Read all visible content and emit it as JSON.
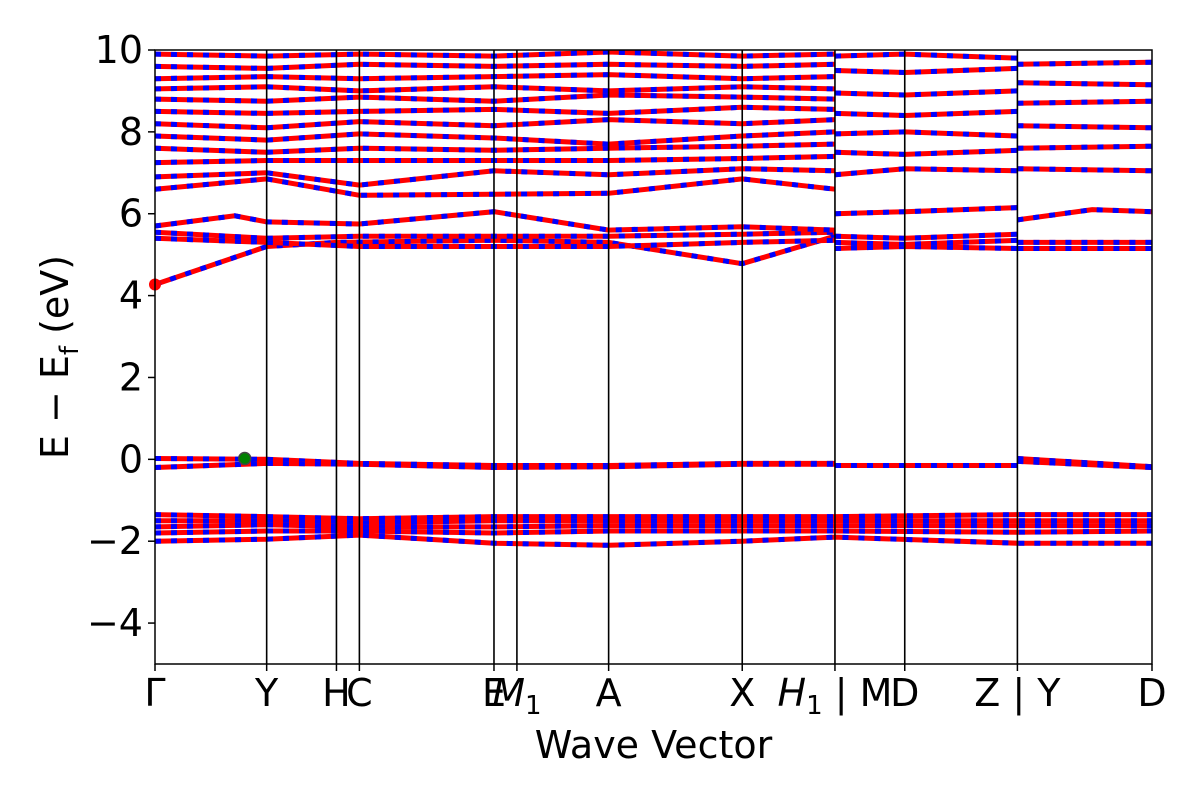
{
  "chart_data": {
    "type": "line",
    "title": "",
    "xlabel": "Wave Vector",
    "ylabel": "E − E",
    "ylabel_subscript": "f",
    "ylabel_unit": "(eV)",
    "ylim": [
      -5,
      10
    ],
    "yticks": [
      -4,
      -2,
      0,
      2,
      4,
      6,
      8,
      10
    ],
    "ytick_labels": [
      "−4",
      "−2",
      "0",
      "2",
      "4",
      "6",
      "8",
      "10"
    ],
    "xlim": [
      0,
      1
    ],
    "kpoints": [
      {
        "pos": 0.0,
        "label": "Γ"
      },
      {
        "pos": 0.112,
        "label": "Y"
      },
      {
        "pos": 0.182,
        "label": "H"
      },
      {
        "pos": 0.205,
        "label": "C"
      },
      {
        "pos": 0.34,
        "label": "E"
      },
      {
        "pos": 0.363,
        "label": "M",
        "sub": "1"
      },
      {
        "pos": 0.455,
        "label": "A"
      },
      {
        "pos": 0.589,
        "label": "X"
      },
      {
        "pos": 0.682,
        "label": "H",
        "sub": "1",
        "suffix": " | M"
      },
      {
        "pos": 0.752,
        "label": "D"
      },
      {
        "pos": 0.865,
        "label": "Z | Y"
      },
      {
        "pos": 1.0,
        "label": "D"
      }
    ],
    "colors": {
      "primary": "#ff0000",
      "secondary": "#0000ff",
      "cbm": "#ff0000",
      "vbm": "#008000",
      "axis": "#000000"
    },
    "markers": [
      {
        "name": "CBM",
        "x": 0.0,
        "y": 4.27
      },
      {
        "name": "VBM",
        "x": 0.09,
        "y": 0.02
      }
    ],
    "bands": [
      {
        "x": [
          0,
          0.112,
          0.182,
          0.34,
          0.455,
          0.589,
          0.682
        ],
        "y": [
          4.27,
          5.2,
          5.3,
          5.35,
          5.3,
          4.78,
          5.45
        ]
      },
      {
        "x": [
          0,
          0.112,
          0.205,
          0.34,
          0.455,
          0.589,
          0.682
        ],
        "y": [
          5.4,
          5.3,
          5.2,
          5.2,
          5.2,
          5.3,
          5.35
        ]
      },
      {
        "x": [
          0,
          0.112,
          0.205,
          0.455,
          0.589,
          0.682
        ],
        "y": [
          5.55,
          5.4,
          5.45,
          5.45,
          5.5,
          5.55
        ]
      },
      {
        "x": [
          0,
          0.08,
          0.112,
          0.205,
          0.34,
          0.455,
          0.589,
          0.682
        ],
        "y": [
          5.7,
          5.95,
          5.8,
          5.75,
          6.05,
          5.6,
          5.68,
          5.6
        ]
      },
      {
        "x": [
          0.682,
          0.752,
          0.865
        ],
        "y": [
          5.15,
          5.2,
          5.15
        ]
      },
      {
        "x": [
          0.682,
          0.752,
          0.865
        ],
        "y": [
          5.3,
          5.25,
          5.35
        ]
      },
      {
        "x": [
          0.682,
          0.752,
          0.865
        ],
        "y": [
          5.45,
          5.4,
          5.5
        ]
      },
      {
        "x": [
          0.682,
          0.752,
          0.865
        ],
        "y": [
          6.0,
          6.05,
          6.15
        ]
      },
      {
        "x": [
          0.865,
          1.0
        ],
        "y": [
          5.15,
          5.15
        ]
      },
      {
        "x": [
          0.865,
          1.0
        ],
        "y": [
          5.3,
          5.3
        ]
      },
      {
        "x": [
          0.865,
          0.94,
          1.0
        ],
        "y": [
          5.85,
          6.1,
          6.05
        ]
      },
      {
        "x": [
          0,
          0.112,
          0.205,
          0.455,
          0.589,
          0.682
        ],
        "y": [
          6.6,
          6.85,
          6.45,
          6.5,
          6.85,
          6.6
        ]
      },
      {
        "x": [
          0,
          0.112,
          0.205,
          0.34,
          0.455,
          0.589,
          0.682
        ],
        "y": [
          6.9,
          7.0,
          6.7,
          7.05,
          6.95,
          7.1,
          7.05
        ]
      },
      {
        "x": [
          0,
          0.112,
          0.205,
          0.455,
          0.589,
          0.682
        ],
        "y": [
          7.25,
          7.3,
          7.3,
          7.3,
          7.35,
          7.4
        ]
      },
      {
        "x": [
          0,
          0.112,
          0.205,
          0.34,
          0.455,
          0.589,
          0.682
        ],
        "y": [
          7.6,
          7.5,
          7.6,
          7.55,
          7.6,
          7.65,
          7.7
        ]
      },
      {
        "x": [
          0,
          0.112,
          0.205,
          0.34,
          0.455,
          0.589,
          0.682
        ],
        "y": [
          7.9,
          7.8,
          7.95,
          7.85,
          7.7,
          7.9,
          8.0
        ]
      },
      {
        "x": [
          0,
          0.112,
          0.205,
          0.34,
          0.455,
          0.589,
          0.682
        ],
        "y": [
          8.2,
          8.1,
          8.25,
          8.15,
          8.3,
          8.2,
          8.3
        ]
      },
      {
        "x": [
          0,
          0.112,
          0.205,
          0.34,
          0.455,
          0.589,
          0.682
        ],
        "y": [
          8.5,
          8.45,
          8.5,
          8.55,
          8.45,
          8.6,
          8.55
        ]
      },
      {
        "x": [
          0,
          0.112,
          0.205,
          0.34,
          0.455,
          0.589,
          0.682
        ],
        "y": [
          8.8,
          8.75,
          8.85,
          8.75,
          8.9,
          8.85,
          8.8
        ]
      },
      {
        "x": [
          0,
          0.112,
          0.205,
          0.34,
          0.455,
          0.589,
          0.682
        ],
        "y": [
          9.05,
          9.1,
          9.0,
          9.1,
          9.0,
          9.1,
          9.05
        ]
      },
      {
        "x": [
          0,
          0.112,
          0.205,
          0.34,
          0.455,
          0.589,
          0.682
        ],
        "y": [
          9.3,
          9.35,
          9.3,
          9.35,
          9.4,
          9.3,
          9.35
        ]
      },
      {
        "x": [
          0,
          0.112,
          0.205,
          0.34,
          0.455,
          0.589,
          0.682
        ],
        "y": [
          9.6,
          9.55,
          9.65,
          9.6,
          9.65,
          9.6,
          9.65
        ]
      },
      {
        "x": [
          0,
          0.112,
          0.205,
          0.34,
          0.455,
          0.589,
          0.682
        ],
        "y": [
          9.9,
          9.85,
          9.9,
          9.85,
          9.95,
          9.85,
          9.9
        ]
      },
      {
        "x": [
          0.682,
          0.752,
          0.865
        ],
        "y": [
          6.95,
          7.1,
          7.05
        ]
      },
      {
        "x": [
          0.682,
          0.752,
          0.865
        ],
        "y": [
          7.5,
          7.45,
          7.55
        ]
      },
      {
        "x": [
          0.682,
          0.752,
          0.865
        ],
        "y": [
          7.95,
          8.0,
          7.9
        ]
      },
      {
        "x": [
          0.682,
          0.752,
          0.865
        ],
        "y": [
          8.45,
          8.4,
          8.5
        ]
      },
      {
        "x": [
          0.682,
          0.752,
          0.865
        ],
        "y": [
          8.95,
          8.9,
          9.0
        ]
      },
      {
        "x": [
          0.682,
          0.752,
          0.865
        ],
        "y": [
          9.5,
          9.45,
          9.55
        ]
      },
      {
        "x": [
          0.682,
          0.752,
          0.865
        ],
        "y": [
          9.85,
          9.9,
          9.8
        ]
      },
      {
        "x": [
          0.865,
          1.0
        ],
        "y": [
          7.1,
          7.05
        ]
      },
      {
        "x": [
          0.865,
          1.0
        ],
        "y": [
          7.6,
          7.65
        ]
      },
      {
        "x": [
          0.865,
          1.0
        ],
        "y": [
          8.15,
          8.1
        ]
      },
      {
        "x": [
          0.865,
          1.0
        ],
        "y": [
          8.7,
          8.75
        ]
      },
      {
        "x": [
          0.865,
          1.0
        ],
        "y": [
          9.2,
          9.15
        ]
      },
      {
        "x": [
          0.865,
          1.0
        ],
        "y": [
          9.65,
          9.7
        ]
      },
      {
        "x": [
          0,
          0.112,
          0.205,
          0.34,
          0.455,
          0.589,
          0.682
        ],
        "y": [
          0.02,
          0.0,
          -0.1,
          -0.15,
          -0.15,
          -0.1,
          -0.1
        ]
      },
      {
        "x": [
          0,
          0.112,
          0.205,
          0.34,
          0.455,
          0.589,
          0.682
        ],
        "y": [
          -0.2,
          -0.1,
          -0.12,
          -0.2,
          -0.18,
          -0.12,
          -0.12
        ]
      },
      {
        "x": [
          0.682,
          0.865
        ],
        "y": [
          -0.15,
          -0.15
        ]
      },
      {
        "x": [
          0.865,
          1.0
        ],
        "y": [
          0.02,
          -0.18
        ]
      },
      {
        "x": [
          0.865,
          1.0
        ],
        "y": [
          -0.05,
          -0.2
        ]
      },
      {
        "x": [
          0,
          0.112,
          0.205,
          0.34,
          0.455,
          0.589,
          0.682,
          0.865,
          1.0
        ],
        "y": [
          -1.35,
          -1.4,
          -1.45,
          -1.4,
          -1.4,
          -1.4,
          -1.4,
          -1.35,
          -1.35
        ]
      },
      {
        "x": [
          0,
          0.112,
          0.205,
          0.34,
          0.455,
          0.589,
          0.682,
          0.865,
          1.0
        ],
        "y": [
          -1.5,
          -1.5,
          -1.55,
          -1.5,
          -1.5,
          -1.5,
          -1.5,
          -1.5,
          -1.5
        ]
      },
      {
        "x": [
          0,
          0.112,
          0.205,
          0.34,
          0.455,
          0.589,
          0.682,
          0.865,
          1.0
        ],
        "y": [
          -1.65,
          -1.6,
          -1.65,
          -1.65,
          -1.62,
          -1.62,
          -1.62,
          -1.62,
          -1.62
        ]
      },
      {
        "x": [
          0,
          0.112,
          0.205,
          0.34,
          0.455,
          0.589,
          0.682,
          0.865,
          1.0
        ],
        "y": [
          -1.8,
          -1.75,
          -1.75,
          -1.8,
          -1.75,
          -1.75,
          -1.75,
          -1.78,
          -1.75
        ]
      },
      {
        "x": [
          0,
          0.112,
          0.205,
          0.34,
          0.455,
          0.589,
          0.682,
          0.865,
          1.0
        ],
        "y": [
          -2.0,
          -1.95,
          -1.85,
          -2.05,
          -2.1,
          -2.0,
          -1.9,
          -2.05,
          -2.05
        ]
      }
    ]
  }
}
